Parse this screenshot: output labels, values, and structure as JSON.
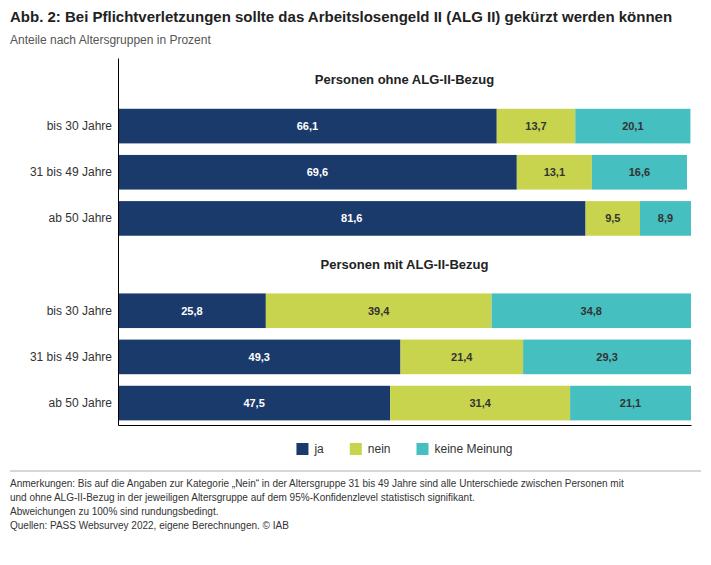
{
  "chart_data": {
    "type": "bar",
    "orientation": "horizontal",
    "stacked": true,
    "data_labels": true,
    "grid": false,
    "legend": "bottom",
    "tick_labels": "y",
    "title": "Abb. 2: Bei Pflichtverletzungen sollte das Arbeitslosengeld II (ALG II) gekürzt werden können",
    "subtitle": "Anteile nach Altersgruppen in Prozent",
    "categories": [
      "bis 30 Jahre",
      "31 bis 49 Jahre",
      "ab 50 Jahre",
      "bis 30 Jahre",
      "31 bis 49 Jahre",
      "ab 50 Jahre"
    ],
    "xlim": [
      0,
      100
    ],
    "series": [
      {
        "name": "ja",
        "color": "#1a3a6b",
        "values": [
          66.1,
          69.6,
          81.6,
          25.8,
          49.3,
          47.5
        ],
        "value_labels": [
          "66,1",
          "69,6",
          "81,6",
          "25,8",
          "49,3",
          "47,5"
        ]
      },
      {
        "name": "nein",
        "color": "#c8d44e",
        "values": [
          13.7,
          13.1,
          9.5,
          39.4,
          21.4,
          31.4
        ],
        "value_labels": [
          "13,7",
          "13,1",
          "9,5",
          "39,4",
          "21,4",
          "31,4"
        ]
      },
      {
        "name": "keine Meinung",
        "color": "#45bfbf",
        "values": [
          20.1,
          16.6,
          8.9,
          34.8,
          29.3,
          21.1
        ],
        "value_labels": [
          "20,1",
          "16,6",
          "8,9",
          "34,8",
          "29,3",
          "21,1"
        ]
      }
    ],
    "annotations": [
      "Personen ohne ALG-II-Bezug",
      "Personen mit ALG-II-Bezug",
      "Anmerkungen: Bis auf die Angaben zur Kategorie „Nein“ in der Altersgruppe 31 bis 49 Jahre sind alle Unterschiede zwischen Personen mit",
      "und ohne ALG-II-Bezug in der jeweiligen Altersgruppe auf dem 95%-Konfidenzlevel statistisch signifikant.",
      "Abweichungen zu 100% sind rundungsbedingt.",
      "Quellen: PASS Websurvey 2022, eigene Berechnungen. © IAB"
    ]
  }
}
